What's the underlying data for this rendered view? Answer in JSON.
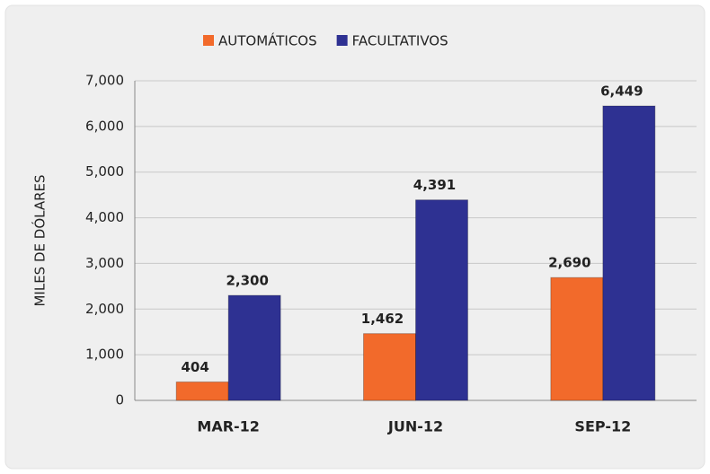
{
  "chart_data": {
    "type": "bar",
    "categories": [
      "MAR-12",
      "JUN-12",
      "SEP-12"
    ],
    "series": [
      {
        "name": "AUTOMÁTICOS",
        "color": "#f26a2b",
        "values": [
          404,
          1462,
          2690
        ],
        "value_labels": [
          "404",
          "1,462",
          "2,690"
        ]
      },
      {
        "name": "FACULTATIVOS",
        "color": "#2e3192",
        "values": [
          2300,
          4391,
          6449
        ],
        "value_labels": [
          "2,300",
          "4,391",
          "6,449"
        ]
      }
    ],
    "y_label": "MILES DE DÓLARES",
    "ylim": [
      0,
      7000
    ],
    "yticks": [
      0,
      {
        "value": 1000,
        "label": "1,000"
      },
      {
        "value": 2000,
        "label": "2,000"
      },
      {
        "value": 3000,
        "label": "3,000"
      },
      {
        "value": 4000,
        "label": "4,000"
      },
      {
        "value": 5000,
        "label": "5,000"
      },
      {
        "value": 6000,
        "label": "6,000"
      },
      {
        "value": 7000,
        "label": "7,000"
      }
    ],
    "grid": true,
    "legend": "top"
  }
}
